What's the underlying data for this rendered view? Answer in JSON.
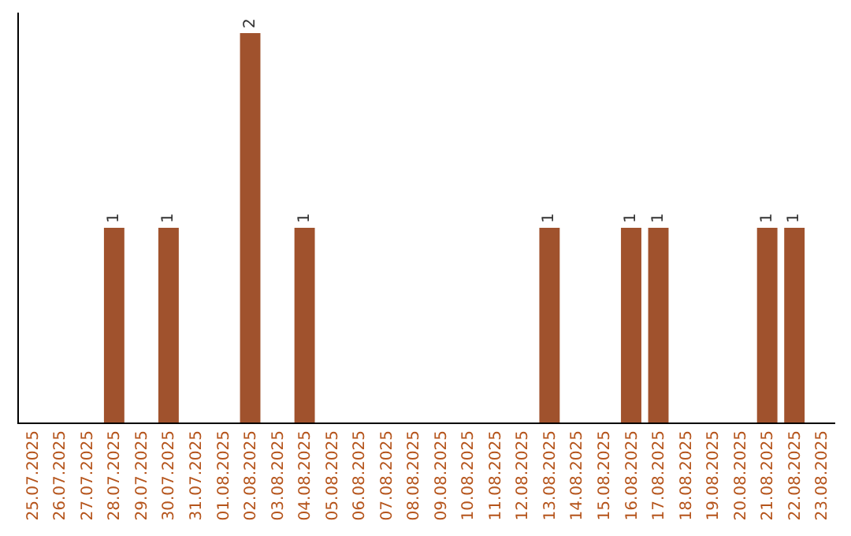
{
  "chart_data": {
    "type": "bar",
    "categories": [
      "25.07.2025",
      "26.07.2025",
      "27.07.2025",
      "28.07.2025",
      "29.07.2025",
      "30.07.2025",
      "31.07.2025",
      "01.08.2025",
      "02.08.2025",
      "03.08.2025",
      "04.08.2025",
      "05.08.2025",
      "06.08.2025",
      "07.08.2025",
      "08.08.2025",
      "09.08.2025",
      "10.08.2025",
      "11.08.2025",
      "12.08.2025",
      "13.08.2025",
      "14.08.2025",
      "15.08.2025",
      "16.08.2025",
      "17.08.2025",
      "18.08.2025",
      "19.08.2025",
      "20.08.2025",
      "21.08.2025",
      "22.08.2025",
      "23.08.2025"
    ],
    "values": [
      0,
      0,
      0,
      1,
      0,
      1,
      0,
      0,
      2,
      0,
      1,
      0,
      0,
      0,
      0,
      0,
      0,
      0,
      0,
      1,
      0,
      0,
      1,
      1,
      0,
      0,
      0,
      1,
      1,
      0
    ],
    "value_labels": [
      null,
      null,
      null,
      "1",
      null,
      "1",
      null,
      null,
      "2",
      null,
      "1",
      null,
      null,
      null,
      null,
      null,
      null,
      null,
      null,
      "1",
      null,
      null,
      "1",
      "1",
      null,
      null,
      null,
      "1",
      "1",
      null
    ],
    "color": "#a0522d",
    "legend": false,
    "tick_labels": "x"
  }
}
